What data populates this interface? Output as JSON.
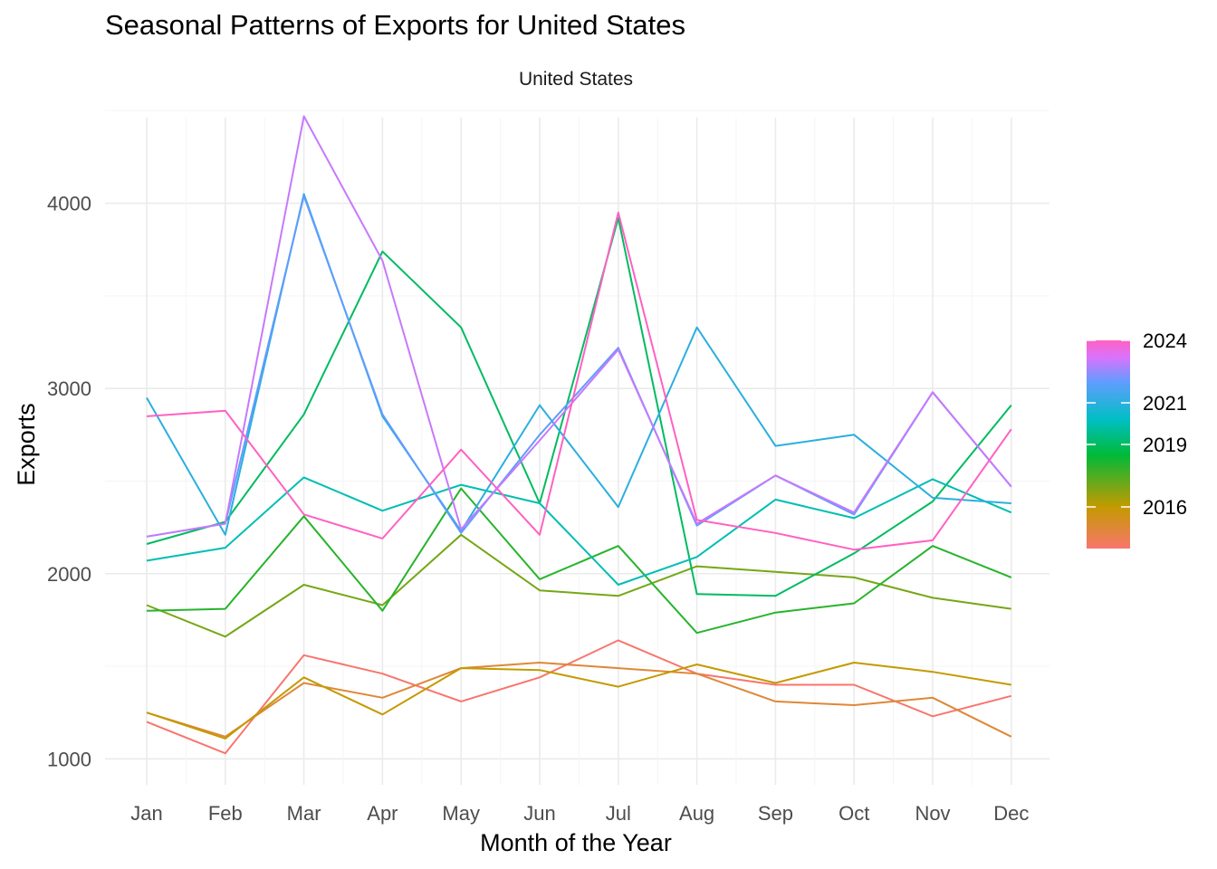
{
  "title": "Seasonal Patterns of Exports for United States",
  "chart_data": {
    "type": "line",
    "title": "Seasonal Patterns of Exports for United States",
    "facet_label": "United States",
    "xlabel": "Month of the Year",
    "ylabel": "Exports",
    "x": [
      "Jan",
      "Feb",
      "Mar",
      "Apr",
      "May",
      "Jun",
      "Jul",
      "Aug",
      "Sep",
      "Oct",
      "Nov",
      "Dec"
    ],
    "ylim": [
      860,
      4560
    ],
    "yticks": [
      1000,
      2000,
      3000,
      4000
    ],
    "grid": true,
    "legend_position": "right",
    "legend_ticks": [
      2016,
      2019,
      2021,
      2024
    ],
    "legend_range": [
      2014,
      2024
    ],
    "series": [
      {
        "year": 2014,
        "values": [
          1200,
          1030,
          1560,
          1460,
          1310,
          1440,
          1640,
          1460,
          1400,
          1400,
          1230,
          1340
        ]
      },
      {
        "year": 2015,
        "values": [
          1250,
          1120,
          1410,
          1330,
          1490,
          1520,
          1490,
          1460,
          1310,
          1290,
          1330,
          1120
        ]
      },
      {
        "year": 2016,
        "values": [
          1250,
          1110,
          1440,
          1240,
          1490,
          1480,
          1390,
          1510,
          1410,
          1520,
          1470,
          1400
        ]
      },
      {
        "year": 2017,
        "values": [
          1830,
          1660,
          1940,
          1830,
          2210,
          1910,
          1880,
          2040,
          2010,
          1980,
          1870,
          1810
        ]
      },
      {
        "year": 2018,
        "values": [
          1800,
          1810,
          2310,
          1800,
          2460,
          1970,
          2150,
          1680,
          1790,
          1840,
          2150,
          1980
        ]
      },
      {
        "year": 2019,
        "values": [
          2160,
          2280,
          2860,
          3740,
          3330,
          2380,
          3920,
          1890,
          1880,
          2110,
          2390,
          2910
        ]
      },
      {
        "year": 2020,
        "values": [
          2070,
          2140,
          2520,
          2340,
          2480,
          2380,
          1940,
          2090,
          2400,
          2300,
          2510,
          2330
        ]
      },
      {
        "year": 2021,
        "values": [
          2950,
          2210,
          4050,
          2850,
          2230,
          2910,
          2360,
          3330,
          2690,
          2750,
          2410,
          2380
        ]
      },
      {
        "year": 2022,
        "values": [
          2200,
          2270,
          4040,
          2860,
          2220,
          2750,
          3220,
          2260,
          2530,
          2320,
          2980,
          2470
        ]
      },
      {
        "year": 2023,
        "values": [
          2200,
          2270,
          4470,
          3690,
          2240,
          2720,
          3210,
          2270,
          2530,
          2330,
          2980,
          2470
        ]
      },
      {
        "year": 2024,
        "values": [
          2850,
          2880,
          2320,
          2190,
          2670,
          2210,
          3950,
          2290,
          2220,
          2130,
          2180,
          2780
        ]
      }
    ]
  }
}
